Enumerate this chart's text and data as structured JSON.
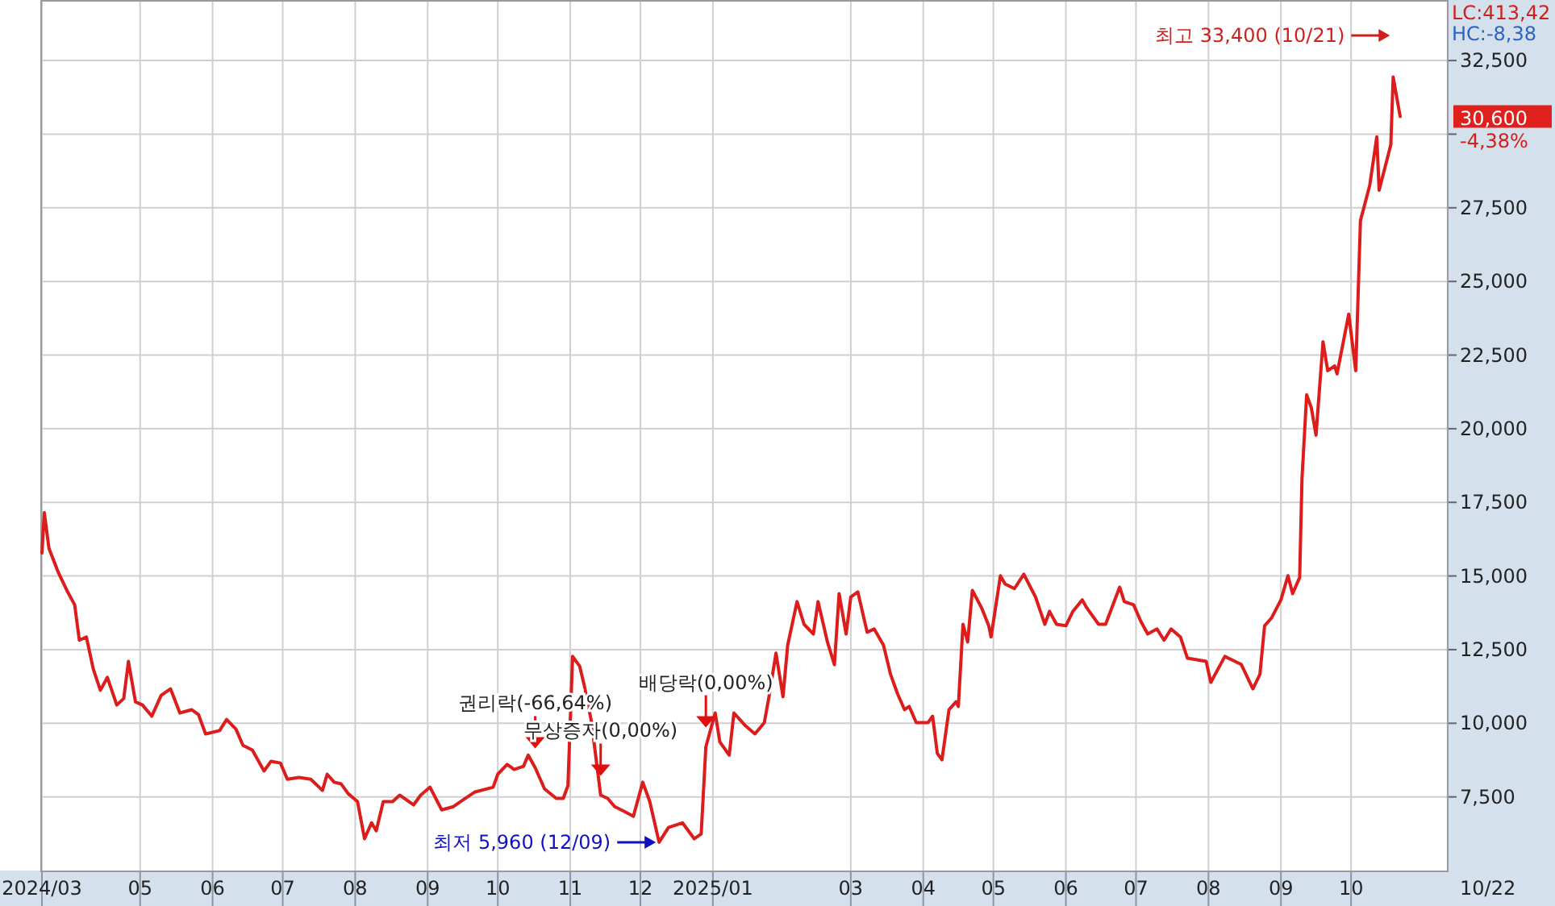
{
  "chart_data": {
    "type": "line",
    "grid": true,
    "marker": "none",
    "line_style": "solid",
    "xlim": [
      "2024-03-20",
      "2025-11-11"
    ],
    "ylim": [
      5000,
      34500
    ],
    "xticks": [
      {
        "value": "2024-03-20",
        "label": "2024/03"
      },
      {
        "value": "2024-05-01",
        "label": "05"
      },
      {
        "value": "2024-06-01",
        "label": "06"
      },
      {
        "value": "2024-07-01",
        "label": "07"
      },
      {
        "value": "2024-08-01",
        "label": "08"
      },
      {
        "value": "2024-09-01",
        "label": "09"
      },
      {
        "value": "2024-10-01",
        "label": "10"
      },
      {
        "value": "2024-11-01",
        "label": "11"
      },
      {
        "value": "2024-12-01",
        "label": "12"
      },
      {
        "value": "2025-01-01",
        "label": "2025/01"
      },
      {
        "value": "2025-03-01",
        "label": "03"
      },
      {
        "value": "2025-04-01",
        "label": "04"
      },
      {
        "value": "2025-05-01",
        "label": "05"
      },
      {
        "value": "2025-06-01",
        "label": "06"
      },
      {
        "value": "2025-07-01",
        "label": "07"
      },
      {
        "value": "2025-08-01",
        "label": "08"
      },
      {
        "value": "2025-09-01",
        "label": "09"
      },
      {
        "value": "2025-10-01",
        "label": "10"
      }
    ],
    "yticks": [
      {
        "value": 7500,
        "label": "7,500"
      },
      {
        "value": 10000,
        "label": "10,000"
      },
      {
        "value": 12500,
        "label": "12,500"
      },
      {
        "value": 15000,
        "label": "15,000"
      },
      {
        "value": 17500,
        "label": "17,500"
      },
      {
        "value": 20000,
        "label": "20,000"
      },
      {
        "value": 22500,
        "label": "22,500"
      },
      {
        "value": 25000,
        "label": "25,000"
      },
      {
        "value": 27500,
        "label": "27,500"
      },
      {
        "value": 30000,
        "label": null
      },
      {
        "value": 32500,
        "label": "32,500"
      }
    ],
    "annotations": [
      "최고 33,400 (10/21)",
      {
        "text": "최저 5,960 (12/09)",
        "x": "2024-12-09",
        "y": 5960
      },
      {
        "text": "권리락(-66,64%)",
        "x": "2024-10-17",
        "y": 8490
      },
      {
        "text": "무상증자(0,00%)",
        "x": "2024-11-14",
        "y": 7560
      },
      {
        "text": "배당락(0,00%)",
        "x": "2024-12-29",
        "y": 9200
      },
      "30,600",
      "-4,38%",
      "LC:413,42",
      "HC:-8,38",
      "10/22"
    ],
    "series": [
      {
        "color": "#dd1c1c",
        "x": [
          "2024-03-20",
          "2024-03-21",
          "2024-03-23",
          "2024-03-27",
          "2024-03-31",
          "2024-04-03",
          "2024-04-05",
          "2024-04-08",
          "2024-04-11",
          "2024-04-14",
          "2024-04-17",
          "2024-04-21",
          "2024-04-24",
          "2024-04-26",
          "2024-04-29",
          "2024-05-02",
          "2024-05-06",
          "2024-05-10",
          "2024-05-14",
          "2024-05-18",
          "2024-05-23",
          "2024-05-26",
          "2024-05-29",
          "2024-06-04",
          "2024-06-07",
          "2024-06-11",
          "2024-06-14",
          "2024-06-18",
          "2024-06-23",
          "2024-06-26",
          "2024-06-30",
          "2024-07-03",
          "2024-07-08",
          "2024-07-13",
          "2024-07-18",
          "2024-07-20",
          "2024-07-23",
          "2024-07-26",
          "2024-07-29",
          "2024-08-02",
          "2024-08-05",
          "2024-08-08",
          "2024-08-10",
          "2024-08-13",
          "2024-08-17",
          "2024-08-20",
          "2024-08-26",
          "2024-08-29",
          "2024-09-02",
          "2024-09-07",
          "2024-09-12",
          "2024-09-16",
          "2024-09-21",
          "2024-09-29",
          "2024-10-01",
          "2024-10-05",
          "2024-10-08",
          "2024-10-12",
          "2024-10-14",
          "2024-10-17",
          "2024-10-21",
          "2024-10-26",
          "2024-10-29",
          "2024-10-31",
          "2024-11-02",
          "2024-11-05",
          "2024-11-07",
          "2024-11-10",
          "2024-11-14",
          "2024-11-17",
          "2024-11-20",
          "2024-11-24",
          "2024-11-28",
          "2024-12-02",
          "2024-12-05",
          "2024-12-09",
          "2024-12-13",
          "2024-12-19",
          "2024-12-24",
          "2024-12-27",
          "2024-12-29",
          "2025-01-02",
          "2025-01-04",
          "2025-01-08",
          "2025-01-10",
          "2025-01-15",
          "2025-01-19",
          "2025-01-23",
          "2025-01-25",
          "2025-01-28",
          "2025-01-31",
          "2025-02-02",
          "2025-02-06",
          "2025-02-09",
          "2025-02-13",
          "2025-02-15",
          "2025-02-19",
          "2025-02-22",
          "2025-02-24",
          "2025-02-27",
          "2025-03-01",
          "2025-03-04",
          "2025-03-08",
          "2025-03-11",
          "2025-03-15",
          "2025-03-18",
          "2025-03-21",
          "2025-03-24",
          "2025-03-26",
          "2025-03-29",
          "2025-04-03",
          "2025-04-05",
          "2025-04-07",
          "2025-04-09",
          "2025-04-12",
          "2025-04-15",
          "2025-04-16",
          "2025-04-18",
          "2025-04-20",
          "2025-04-22",
          "2025-04-26",
          "2025-04-29",
          "2025-04-30",
          "2025-05-04",
          "2025-05-06",
          "2025-05-10",
          "2025-05-14",
          "2025-05-19",
          "2025-05-23",
          "2025-05-25",
          "2025-05-28",
          "2025-06-01",
          "2025-06-04",
          "2025-06-08",
          "2025-06-10",
          "2025-06-15",
          "2025-06-18",
          "2025-06-24",
          "2025-06-26",
          "2025-06-30",
          "2025-07-03",
          "2025-07-06",
          "2025-07-10",
          "2025-07-13",
          "2025-07-16",
          "2025-07-20",
          "2025-07-23",
          "2025-07-31",
          "2025-08-02",
          "2025-08-08",
          "2025-08-15",
          "2025-08-20",
          "2025-08-23",
          "2025-08-25",
          "2025-08-28",
          "2025-09-01",
          "2025-09-04",
          "2025-09-06",
          "2025-09-09",
          "2025-09-10",
          "2025-09-12",
          "2025-09-14",
          "2025-09-16",
          "2025-09-19",
          "2025-09-21",
          "2025-09-24",
          "2025-09-25",
          "2025-09-30",
          "2025-10-03",
          "2025-10-05",
          "2025-10-09",
          "2025-10-12",
          "2025-10-13",
          "2025-10-18",
          "2025-10-19",
          "2025-10-22"
        ],
        "values": [
          15780,
          17150,
          15940,
          15120,
          14460,
          14020,
          12820,
          12930,
          11830,
          11120,
          11560,
          10620,
          10840,
          12100,
          10730,
          10620,
          10240,
          10950,
          11170,
          10350,
          10460,
          10290,
          9640,
          9750,
          10130,
          9800,
          9250,
          9090,
          8380,
          8710,
          8650,
          8100,
          8160,
          8100,
          7720,
          8270,
          8000,
          7940,
          7610,
          7340,
          6080,
          6620,
          6350,
          7340,
          7340,
          7560,
          7230,
          7560,
          7830,
          7060,
          7170,
          7390,
          7660,
          7830,
          8270,
          8600,
          8430,
          8540,
          8920,
          8490,
          7770,
          7450,
          7450,
          7880,
          12270,
          11940,
          11280,
          10080,
          7560,
          7450,
          7170,
          7010,
          6840,
          8000,
          7340,
          5960,
          6460,
          6620,
          6080,
          6240,
          9200,
          10350,
          9360,
          8920,
          10350,
          9910,
          9640,
          10020,
          10900,
          12380,
          10900,
          12650,
          14130,
          13360,
          13030,
          14130,
          12760,
          11990,
          14400,
          13030,
          14290,
          14460,
          13090,
          13200,
          12650,
          11660,
          11000,
          10460,
          10570,
          10020,
          10020,
          10240,
          8980,
          8760,
          10460,
          10730,
          10570,
          13360,
          12760,
          14510,
          13910,
          13310,
          12930,
          15010,
          14730,
          14570,
          15060,
          14290,
          13360,
          13800,
          13360,
          13310,
          13800,
          14190,
          13910,
          13360,
          13360,
          14620,
          14130,
          14020,
          13470,
          13030,
          13200,
          12820,
          13200,
          12930,
          12210,
          12100,
          11390,
          12270,
          12000,
          11170,
          11660,
          13310,
          13580,
          14190,
          15010,
          14400,
          14950,
          18300,
          21150,
          20710,
          19780,
          22950,
          21970,
          22130,
          21860,
          23890,
          21970,
          27060,
          28270,
          29910,
          28100,
          29640,
          31940,
          30600
        ]
      }
    ]
  }
}
